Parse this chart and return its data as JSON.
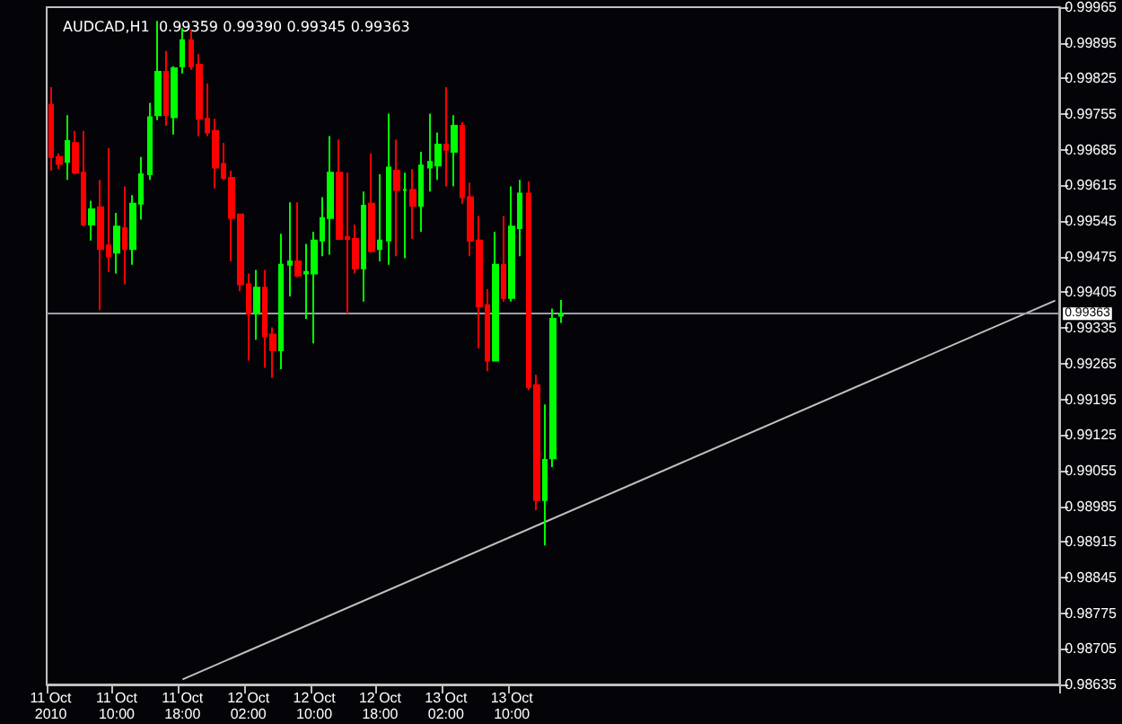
{
  "chart_data": {
    "type": "candlestick",
    "title": "AUDCAD,H1  0.99359 0.99390 0.99345 0.99363",
    "categories": [
      "11 Oct 2010",
      null,
      null,
      null,
      null,
      null,
      null,
      null,
      "11 Oct 10:00",
      null,
      null,
      null,
      null,
      null,
      null,
      null,
      "11 Oct 18:00",
      null,
      null,
      null,
      null,
      null,
      null,
      null,
      "12 Oct 02:00",
      null,
      null,
      null,
      null,
      null,
      null,
      null,
      "12 Oct 10:00",
      null,
      null,
      null,
      null,
      null,
      null,
      null,
      "12 Oct 18:00",
      null,
      null,
      null,
      null,
      null,
      null,
      null,
      "13 Oct 02:00",
      null,
      null,
      null,
      null,
      null,
      null,
      null,
      "13 Oct 10:00",
      null,
      null,
      null,
      null,
      null,
      null,
      null,
      null,
      null,
      null,
      null,
      null,
      null,
      null,
      null,
      null,
      null,
      null,
      null,
      null,
      null,
      null,
      null,
      null,
      null,
      null,
      null,
      null,
      null,
      null,
      null,
      null,
      null,
      null,
      null,
      null,
      null,
      null,
      null,
      null,
      null,
      null,
      null,
      null,
      null,
      null,
      null,
      null,
      null,
      null,
      null,
      null,
      null,
      null,
      null,
      null,
      null,
      null,
      null,
      null,
      null,
      null,
      null,
      null,
      null,
      null
    ],
    "ohlc": [
      [
        0.99773,
        0.99808,
        0.99644,
        0.99671
      ],
      [
        0.99671,
        0.99678,
        0.99647,
        0.99657
      ],
      [
        0.99661,
        0.99753,
        0.99626,
        0.99702
      ],
      [
        0.99698,
        0.99722,
        0.99637,
        0.9964
      ],
      [
        0.9964,
        0.99722,
        0.99534,
        0.99538
      ],
      [
        0.99538,
        0.99585,
        0.99507,
        0.99568
      ],
      [
        0.99572,
        0.99626,
        0.9937,
        0.9949
      ],
      [
        0.99497,
        0.99688,
        0.99445,
        0.99476
      ],
      [
        0.99483,
        0.99561,
        0.99442,
        0.99534
      ],
      [
        0.99531,
        0.99613,
        0.99421,
        0.9949
      ],
      [
        0.9949,
        0.99596,
        0.99459,
        0.99579
      ],
      [
        0.99579,
        0.99671,
        0.99548,
        0.99637
      ],
      [
        0.99637,
        0.99777,
        0.99626,
        0.99749
      ],
      [
        0.99753,
        0.99938,
        0.99743,
        0.99838
      ],
      [
        0.99838,
        0.99879,
        0.99732,
        0.99753
      ],
      [
        0.99749,
        0.99849,
        0.99715,
        0.99845
      ],
      [
        0.99849,
        0.99924,
        0.99835,
        0.999
      ],
      [
        0.999,
        0.99921,
        0.99842,
        0.99849
      ],
      [
        0.99852,
        0.99873,
        0.99712,
        0.99746
      ],
      [
        0.99746,
        0.99815,
        0.99712,
        0.99719
      ],
      [
        0.99722,
        0.99746,
        0.99609,
        0.9965
      ],
      [
        0.99657,
        0.99698,
        0.99626,
        0.9963
      ],
      [
        0.9963,
        0.99644,
        0.99466,
        0.99551
      ],
      [
        0.99558,
        0.99558,
        0.99407,
        0.99421
      ],
      [
        0.99421,
        0.99442,
        0.99271,
        0.99363
      ],
      [
        0.99363,
        0.99449,
        0.99312,
        0.99414
      ],
      [
        0.99414,
        0.99449,
        0.99257,
        0.99319
      ],
      [
        0.99322,
        0.99336,
        0.99237,
        0.99291
      ],
      [
        0.99291,
        0.9952,
        0.99254,
        0.99459
      ],
      [
        0.99459,
        0.99582,
        0.99397,
        0.99466
      ],
      [
        0.99466,
        0.99582,
        0.99435,
        0.99438
      ],
      [
        0.99442,
        0.995,
        0.99353,
        0.99445
      ],
      [
        0.99442,
        0.99524,
        0.99305,
        0.99507
      ],
      [
        0.99507,
        0.99592,
        0.99476,
        0.99551
      ],
      [
        0.99551,
        0.99712,
        0.99479,
        0.9964
      ],
      [
        0.9964,
        0.99705,
        0.9951,
        0.9951
      ],
      [
        0.99514,
        0.9964,
        0.99363,
        0.9951
      ],
      [
        0.9951,
        0.99538,
        0.99442,
        0.99452
      ],
      [
        0.99452,
        0.99603,
        0.99387,
        0.99575
      ],
      [
        0.99579,
        0.99678,
        0.99483,
        0.99486
      ],
      [
        0.9949,
        0.99637,
        0.99466,
        0.99507
      ],
      [
        0.99507,
        0.99756,
        0.99459,
        0.9965
      ],
      [
        0.99644,
        0.99705,
        0.99476,
        0.99606
      ],
      [
        0.99606,
        0.9964,
        0.99472,
        0.99606
      ],
      [
        0.99606,
        0.99647,
        0.9951,
        0.99575
      ],
      [
        0.99575,
        0.99681,
        0.99524,
        0.99654
      ],
      [
        0.9965,
        0.99756,
        0.99603,
        0.99661
      ],
      [
        0.99654,
        0.99719,
        0.99626,
        0.99695
      ],
      [
        0.99695,
        0.99808,
        0.99613,
        0.99685
      ],
      [
        0.99681,
        0.99753,
        0.99613,
        0.99732
      ],
      [
        0.99732,
        0.99739,
        0.99579,
        0.99592
      ],
      [
        0.99592,
        0.9962,
        0.99476,
        0.99507
      ],
      [
        0.99507,
        0.99555,
        0.99295,
        0.99377
      ],
      [
        0.9938,
        0.99411,
        0.9925,
        0.99271
      ],
      [
        0.99271,
        0.99524,
        0.99271,
        0.99459
      ],
      [
        0.99459,
        0.99555,
        0.99387,
        0.99394
      ],
      [
        0.99394,
        0.99613,
        0.99387,
        0.99534
      ],
      [
        0.99531,
        0.99626,
        0.99476,
        0.99599
      ],
      [
        0.99599,
        0.99623,
        0.99213,
        0.99219
      ],
      [
        0.99223,
        0.99243,
        0.98977,
        0.98997
      ],
      [
        0.98997,
        0.99185,
        0.98908,
        0.99076
      ],
      [
        0.99079,
        0.99373,
        0.99062,
        0.99353
      ],
      [
        0.99359,
        0.9939,
        0.99345,
        0.99363
      ],
      null,
      null,
      null,
      null,
      null,
      null,
      null,
      null,
      null,
      null,
      null,
      null,
      null,
      null,
      null,
      null,
      null,
      null,
      null,
      null,
      null,
      null,
      null,
      null,
      null,
      null,
      null,
      null,
      null,
      null,
      null,
      null,
      null,
      null,
      null,
      null,
      null,
      null,
      null,
      null,
      null,
      null,
      null,
      null,
      null,
      null,
      null,
      null,
      null,
      null,
      null,
      null,
      null,
      null,
      null,
      null,
      null,
      null,
      null,
      null
    ],
    "series": [
      {
        "type": "line",
        "color": "#c0c0c0",
        "values": [
          null,
          null,
          null,
          null,
          null,
          null,
          null,
          null,
          null,
          null,
          null,
          null,
          null,
          null,
          null,
          null,
          0.98645,
          null,
          null,
          null,
          null,
          null,
          null,
          null,
          null,
          null,
          null,
          null,
          null,
          null,
          null,
          null,
          null,
          null,
          null,
          null,
          null,
          null,
          null,
          null,
          null,
          null,
          null,
          null,
          null,
          null,
          null,
          null,
          null,
          null,
          null,
          null,
          null,
          null,
          null,
          null,
          null,
          null,
          null,
          null,
          null,
          null,
          null,
          null,
          null,
          null,
          null,
          null,
          null,
          null,
          null,
          null,
          null,
          null,
          null,
          null,
          null,
          null,
          null,
          null,
          null,
          null,
          null,
          null,
          null,
          null,
          null,
          null,
          null,
          null,
          null,
          null,
          null,
          null,
          null,
          null,
          null,
          null,
          null,
          null,
          null,
          null,
          null,
          null,
          null,
          null,
          null,
          null,
          null,
          null,
          null,
          null,
          null,
          null,
          null,
          null,
          null,
          null,
          null,
          null,
          null,
          null,
          0.99389
        ]
      }
    ],
    "ylim": [
      0.98635,
      0.99965
    ],
    "yticks": [
      0.99965,
      0.99895,
      0.99825,
      0.99755,
      0.99685,
      0.99615,
      0.99545,
      0.99475,
      0.99405,
      0.99335,
      0.99265,
      0.99195,
      0.99125,
      0.99055,
      0.98985,
      0.98915,
      0.98845,
      0.98775,
      0.98705,
      0.98635
    ],
    "ref_lines": [
      {
        "axis": "y",
        "value": 0.99363,
        "label": "0.99363",
        "color": "#9aa0a8"
      }
    ]
  }
}
